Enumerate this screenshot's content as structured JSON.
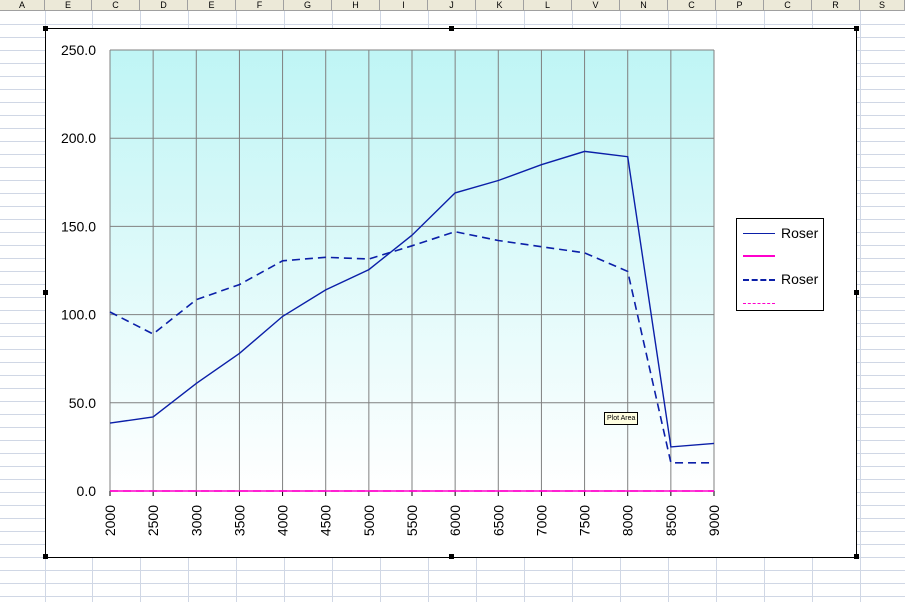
{
  "spreadsheet": {
    "column_letters": [
      "A",
      "E",
      "C",
      "D",
      "E",
      "F",
      "G",
      "H",
      "I",
      "J",
      "K",
      "L",
      "V",
      "N",
      "C",
      "P",
      "C",
      "R",
      "S"
    ]
  },
  "tooltip": "Plot Area",
  "chart_data": {
    "type": "line",
    "x": [
      "2000",
      "2500",
      "3000",
      "3500",
      "4000",
      "4500",
      "5000",
      "5500",
      "6000",
      "6500",
      "7000",
      "7500",
      "8000",
      "8500",
      "9000"
    ],
    "ylim": [
      0,
      250
    ],
    "yticks": [
      "0.0",
      "50.0",
      "100.0",
      "150.0",
      "200.0",
      "250.0"
    ],
    "grid": true,
    "legend_position": "right",
    "plot_background": [
      "#bff5f5",
      "#ffffff"
    ],
    "series": [
      {
        "name": "Roser",
        "style": "solid",
        "color": "#0b1fa8",
        "values": [
          38.5,
          42,
          61,
          78,
          99,
          114,
          125.5,
          145,
          169,
          176,
          185,
          192.5,
          189.5,
          25,
          27
        ]
      },
      {
        "name": "",
        "style": "solid",
        "color": "#ff00cc",
        "values": [
          0,
          0,
          0,
          0,
          0,
          0,
          0,
          0,
          0,
          0,
          0,
          0,
          0,
          0,
          0
        ]
      },
      {
        "name": "Roser",
        "style": "dashed",
        "color": "#0b1fa8",
        "values": [
          101.5,
          89,
          108.5,
          117,
          130.5,
          132.5,
          131.5,
          139,
          147,
          142,
          138.5,
          135,
          124.5,
          16,
          16
        ]
      },
      {
        "name": "",
        "style": "dashed",
        "color": "#ff00cc",
        "values": [
          0,
          0,
          0,
          0,
          0,
          0,
          0,
          0,
          0,
          0,
          0,
          0,
          0,
          0,
          0
        ]
      }
    ]
  }
}
